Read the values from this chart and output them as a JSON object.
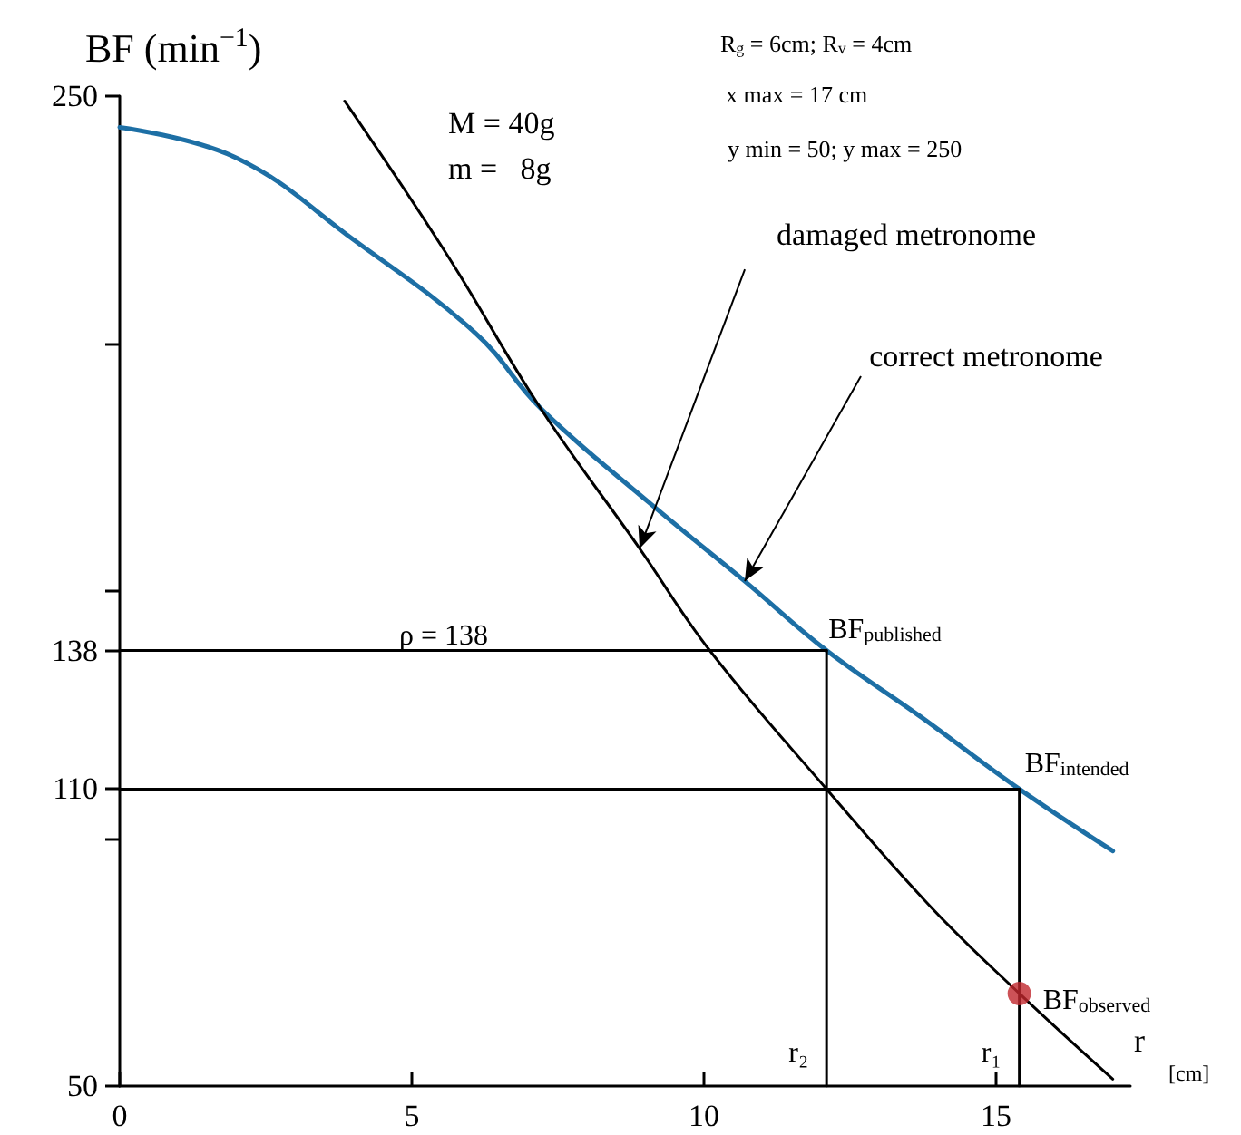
{
  "chart_data": {
    "type": "line",
    "ylabel": "BF (min$^{−1}$)",
    "xlabel": "r",
    "xlim": [
      0,
      17.3
    ],
    "xticks": [
      0,
      5,
      10,
      15
    ],
    "ylim": [
      50,
      250
    ],
    "yticks": [
      50,
      {
        "value": 100,
        "label": null
      },
      110,
      138,
      {
        "value": 150,
        "label": null
      },
      {
        "value": 200,
        "label": null
      },
      250
    ],
    "series": [
      {
        "color": "#000000",
        "x": [
          3.85,
          5.6,
          7.2,
          8.9,
          10.1,
          12.1,
          13.9,
          15.4,
          17.0
        ],
        "values": [
          249,
          218,
          187,
          158.6,
          138,
          110,
          86,
          68.7,
          51.4
        ]
      },
      {
        "color": "#1d6fa5",
        "x": [
          0,
          2.0,
          4.0,
          6.1,
          7.2,
          9.1,
          10.7,
          12.1,
          13.7,
          15.4,
          17.0
        ],
        "values": [
          243.7,
          237.5,
          221,
          202,
          187,
          167.5,
          152,
          138,
          124.7,
          110,
          97.5
        ]
      },
      {
        "color": "#000000",
        "x": [
          0,
          12.1
        ],
        "values": [
          138,
          138
        ]
      },
      {
        "color": "#000000",
        "x": [
          12.1,
          12.1
        ],
        "values": [
          50,
          138
        ]
      },
      {
        "color": "#000000",
        "x": [
          0,
          15.4
        ],
        "values": [
          110,
          110
        ]
      },
      {
        "color": "#000000",
        "x": [
          15.4,
          15.4
        ],
        "values": [
          50,
          110
        ]
      },
      {
        "type": "scatter",
        "color": "#c0272d",
        "x": [
          15.4
        ],
        "values": [
          68.7
        ]
      }
    ],
    "annotations": [
      "M = 40g",
      "m =   8g",
      "R$_{g}$ = 6cm; R$_{v}$ = 4cm",
      "x max = 17 cm",
      "y min = 50; y max = 250",
      "[cm]",
      {
        "text": "damaged metronome",
        "x": 8.9,
        "y": 158.6
      },
      {
        "text": "correct metronome",
        "x": 10.7,
        "y": 152
      },
      {
        "text": "BF$_{published}$",
        "x": 12.1,
        "y": 138
      },
      {
        "text": "BF$_{intended}$",
        "x": 15.4,
        "y": 110
      },
      {
        "text": "BF$_{observed}$",
        "x": 15.4,
        "y": 68.7
      },
      {
        "text": "ρ = 138",
        "x": 5,
        "y": 138
      },
      {
        "text": "r₂",
        "x": 12.1,
        "y": 50
      },
      {
        "text": "r₁",
        "x": 15.4,
        "y": 50
      }
    ]
  }
}
